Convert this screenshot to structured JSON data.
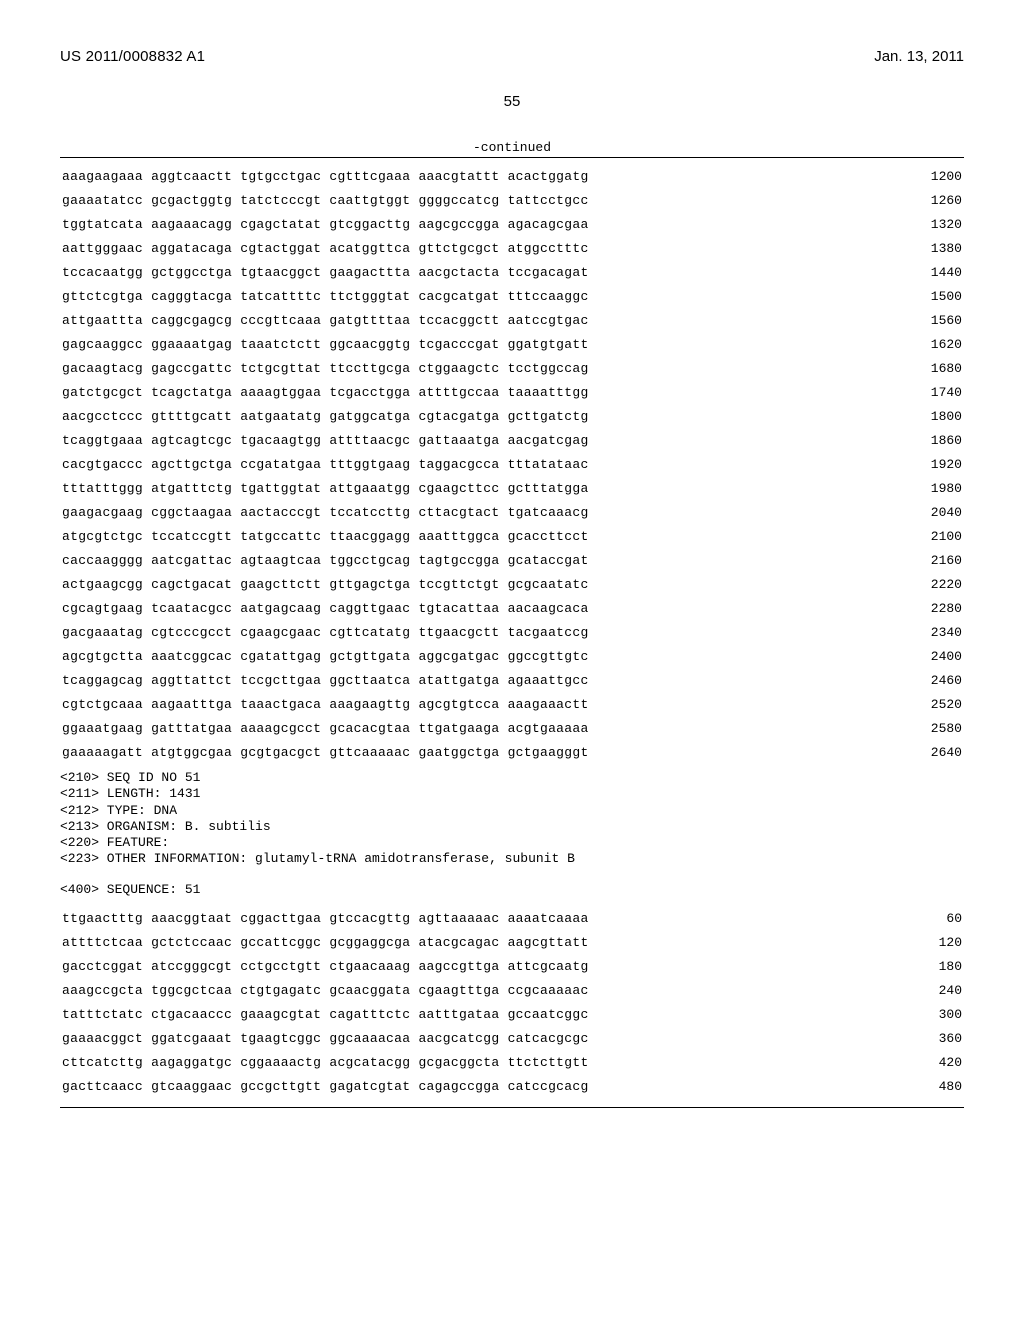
{
  "header": {
    "pub_number": "US 2011/0008832 A1",
    "pub_date": "Jan. 13, 2011",
    "page_num": "55"
  },
  "continued_label": "-continued",
  "rule_color": "#000000",
  "font": {
    "mono": "Courier New",
    "sans": "Arial",
    "seq_size_pt": 13,
    "header_size_pt": 15
  },
  "sequence_50": {
    "lines": [
      {
        "seq": "aaagaagaaa aggtcaactt tgtgcctgac cgtttcgaaa aaacgtattt acactggatg",
        "pos": 1200
      },
      {
        "seq": "gaaaatatcc gcgactggtg tatctcccgt caattgtggt ggggccatcg tattcctgcc",
        "pos": 1260
      },
      {
        "seq": "tggtatcata aagaaacagg cgagctatat gtcggacttg aagcgccgga agacagcgaa",
        "pos": 1320
      },
      {
        "seq": "aattgggaac aggatacaga cgtactggat acatggttca gttctgcgct atggcctttc",
        "pos": 1380
      },
      {
        "seq": "tccacaatgg gctggcctga tgtaacggct gaagacttta aacgctacta tccgacagat",
        "pos": 1440
      },
      {
        "seq": "gttctcgtga cagggtacga tatcattttc ttctgggtat cacgcatgat tttccaaggc",
        "pos": 1500
      },
      {
        "seq": "attgaattta caggcgagcg cccgttcaaa gatgttttaa tccacggctt aatccgtgac",
        "pos": 1560
      },
      {
        "seq": "gagcaaggcc ggaaaatgag taaatctctt ggcaacggtg tcgacccgat ggatgtgatt",
        "pos": 1620
      },
      {
        "seq": "gacaagtacg gagccgattc tctgcgttat ttccttgcga ctggaagctc tcctggccag",
        "pos": 1680
      },
      {
        "seq": "gatctgcgct tcagctatga aaaagtggaa tcgacctgga attttgccaa taaaatttgg",
        "pos": 1740
      },
      {
        "seq": "aacgcctccc gttttgcatt aatgaatatg gatggcatga cgtacgatga gcttgatctg",
        "pos": 1800
      },
      {
        "seq": "tcaggtgaaa agtcagtcgc tgacaagtgg attttaacgc gattaaatga aacgatcgag",
        "pos": 1860
      },
      {
        "seq": "cacgtgaccc agcttgctga ccgatatgaa tttggtgaag taggacgcca tttatataac",
        "pos": 1920
      },
      {
        "seq": "tttatttggg atgatttctg tgattggtat attgaaatgg cgaagcttcc gctttatgga",
        "pos": 1980
      },
      {
        "seq": "gaagacgaag cggctaagaa aactacccgt tccatccttg cttacgtact tgatcaaacg",
        "pos": 2040
      },
      {
        "seq": "atgcgtctgc tccatccgtt tatgccattc ttaacggagg aaatttggca gcaccttcct",
        "pos": 2100
      },
      {
        "seq": "caccaagggg aatcgattac agtaagtcaa tggcctgcag tagtgccgga gcataccgat",
        "pos": 2160
      },
      {
        "seq": "actgaagcgg cagctgacat gaagcttctt gttgagctga tccgttctgt gcgcaatatc",
        "pos": 2220
      },
      {
        "seq": "cgcagtgaag tcaatacgcc aatgagcaag caggttgaac tgtacattaa aacaagcaca",
        "pos": 2280
      },
      {
        "seq": "gacgaaatag cgtcccgcct cgaagcgaac cgttcatatg ttgaacgctt tacgaatccg",
        "pos": 2340
      },
      {
        "seq": "agcgtgctta aaatcggcac cgatattgag gctgttgata aggcgatgac ggccgttgtc",
        "pos": 2400
      },
      {
        "seq": "tcaggagcag aggttattct tccgcttgaa ggcttaatca atattgatga agaaattgcc",
        "pos": 2460
      },
      {
        "seq": "cgtctgcaaa aagaatttga taaactgaca aaagaagttg agcgtgtcca aaagaaactt",
        "pos": 2520
      },
      {
        "seq": "ggaaatgaag gatttatgaa aaaagcgcct gcacacgtaa ttgatgaaga acgtgaaaaa",
        "pos": 2580
      },
      {
        "seq": "gaaaaagatt atgtggcgaa gcgtgacgct gttcaaaaac gaatggctga gctgaagggt",
        "pos": 2640
      }
    ]
  },
  "seq51_meta": {
    "lines": [
      "<210> SEQ ID NO 51",
      "<211> LENGTH: 1431",
      "<212> TYPE: DNA",
      "<213> ORGANISM: B. subtilis",
      "<220> FEATURE:",
      "<223> OTHER INFORMATION: glutamyl-tRNA amidotransferase, subunit B"
    ],
    "sequence_label": "<400> SEQUENCE: 51"
  },
  "sequence_51": {
    "lines": [
      {
        "seq": "ttgaactttg aaacggtaat cggacttgaa gtccacgttg agttaaaaac aaaatcaaaa",
        "pos": 60
      },
      {
        "seq": "attttctcaa gctctccaac gccattcggc gcggaggcga atacgcagac aagcgttatt",
        "pos": 120
      },
      {
        "seq": "gacctcggat atccgggcgt cctgcctgtt ctgaacaaag aagccgttga attcgcaatg",
        "pos": 180
      },
      {
        "seq": "aaagccgcta tggcgctcaa ctgtgagatc gcaacggata cgaagtttga ccgcaaaaac",
        "pos": 240
      },
      {
        "seq": "tatttctatc ctgacaaccc gaaagcgtat cagatttctc aatttgataa gccaatcggc",
        "pos": 300
      },
      {
        "seq": "gaaaacggct ggatcgaaat tgaagtcggc ggcaaaacaa aacgcatcgg catcacgcgc",
        "pos": 360
      },
      {
        "seq": "cttcatcttg aagaggatgc cggaaaactg acgcatacgg gcgacggcta ttctcttgtt",
        "pos": 420
      },
      {
        "seq": "gacttcaacc gtcaaggaac gccgcttgtt gagatcgtat cagagccgga catccgcacg",
        "pos": 480
      }
    ]
  }
}
